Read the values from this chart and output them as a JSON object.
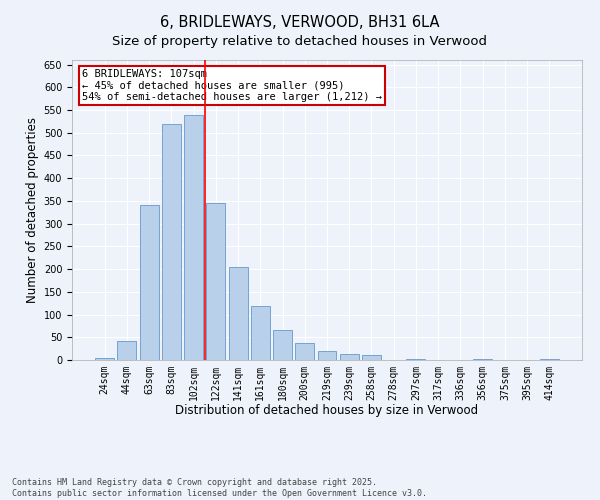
{
  "title": "6, BRIDLEWAYS, VERWOOD, BH31 6LA",
  "subtitle": "Size of property relative to detached houses in Verwood",
  "xlabel": "Distribution of detached houses by size in Verwood",
  "ylabel": "Number of detached properties",
  "bar_color": "#b8d0ea",
  "bar_edge_color": "#6699cc",
  "background_color": "#eef2fb",
  "grid_color": "#ffffff",
  "categories": [
    "24sqm",
    "44sqm",
    "63sqm",
    "83sqm",
    "102sqm",
    "122sqm",
    "141sqm",
    "161sqm",
    "180sqm",
    "200sqm",
    "219sqm",
    "239sqm",
    "258sqm",
    "278sqm",
    "297sqm",
    "317sqm",
    "336sqm",
    "356sqm",
    "375sqm",
    "395sqm",
    "414sqm"
  ],
  "values": [
    5,
    42,
    340,
    520,
    540,
    345,
    205,
    118,
    67,
    38,
    20,
    13,
    10,
    0,
    3,
    0,
    0,
    3,
    0,
    0,
    3
  ],
  "ylim": [
    0,
    660
  ],
  "yticks": [
    0,
    50,
    100,
    150,
    200,
    250,
    300,
    350,
    400,
    450,
    500,
    550,
    600,
    650
  ],
  "red_line_x": 4.5,
  "annotation_line1": "6 BRIDLEWAYS: 107sqm",
  "annotation_line2": "← 45% of detached houses are smaller (995)",
  "annotation_line3": "54% of semi-detached houses are larger (1,212) →",
  "annotation_box_color": "#ffffff",
  "annotation_edge_color": "#cc0000",
  "footnote": "Contains HM Land Registry data © Crown copyright and database right 2025.\nContains public sector information licensed under the Open Government Licence v3.0.",
  "title_fontsize": 10.5,
  "subtitle_fontsize": 9.5,
  "xlabel_fontsize": 8.5,
  "ylabel_fontsize": 8.5,
  "tick_fontsize": 7,
  "annotation_fontsize": 7.5,
  "footnote_fontsize": 6.0
}
